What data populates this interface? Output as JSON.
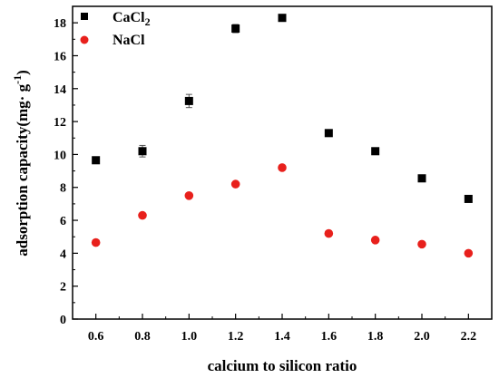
{
  "chart_data": {
    "type": "scatter",
    "xlabel": "calcium to silicon ratio",
    "ylabel": "adsorption capacity(mg· g",
    "ylabel_sup": "-1",
    "ylabel_close": ")",
    "xlim": [
      0.5,
      2.3
    ],
    "ylim": [
      0,
      19
    ],
    "x_ticks": [
      0.6,
      0.8,
      1.0,
      1.2,
      1.4,
      1.6,
      1.8,
      2.0,
      2.2
    ],
    "x_tick_labels": [
      "0.6",
      "0.8",
      "1.0",
      "1.2",
      "1.4",
      "1.6",
      "1.8",
      "2.0",
      "2.2"
    ],
    "y_ticks": [
      0,
      2,
      4,
      6,
      8,
      10,
      12,
      14,
      16,
      18
    ],
    "y_tick_labels": [
      "0",
      "2",
      "4",
      "6",
      "8",
      "10",
      "12",
      "14",
      "16",
      "18"
    ],
    "grid": false,
    "legend_position": "top-left",
    "series": [
      {
        "name": "CaCl",
        "name_sub": "2",
        "marker": "square",
        "color": "#000000",
        "x": [
          0.6,
          0.8,
          1.0,
          1.2,
          1.4,
          1.6,
          1.8,
          2.0,
          2.2
        ],
        "y": [
          9.65,
          10.2,
          13.25,
          17.65,
          18.3,
          11.3,
          10.2,
          8.55,
          7.3
        ],
        "error": [
          0.1,
          0.35,
          0.4,
          0.25,
          0.15,
          0.1,
          0.1,
          0.1,
          0.1
        ]
      },
      {
        "name": "NaCl",
        "marker": "circle",
        "color": "#e8201c",
        "x": [
          0.6,
          0.8,
          1.0,
          1.2,
          1.4,
          1.6,
          1.8,
          2.0,
          2.2
        ],
        "y": [
          4.65,
          6.3,
          7.5,
          8.2,
          9.2,
          5.2,
          4.8,
          4.55,
          4.0
        ],
        "error": [
          0.05,
          0.05,
          0.05,
          0.05,
          0.05,
          0.05,
          0.05,
          0.05,
          0.05
        ]
      }
    ]
  }
}
